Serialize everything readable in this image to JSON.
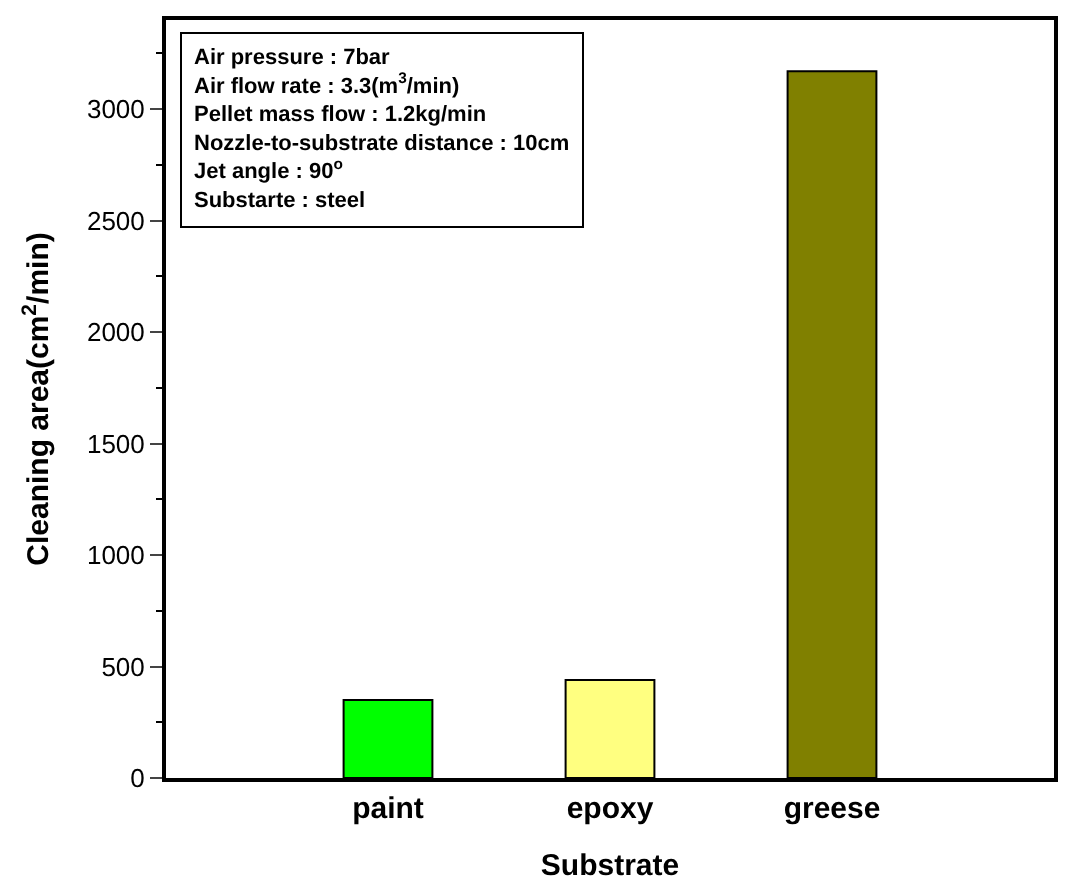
{
  "chart_data": {
    "type": "bar",
    "xlabel": "Substrate",
    "ylabel": "Cleaning area(cm$^{2}$/min)",
    "categories": [
      "paint",
      "epoxy",
      "greese"
    ],
    "values": [
      350,
      440,
      3170
    ],
    "colors": [
      "#00ff00",
      "#ffff80",
      "#808000"
    ],
    "ylim": [
      0,
      3400
    ],
    "yticks": [
      0,
      500,
      1000,
      1500,
      2000,
      2500,
      3000
    ],
    "annotations": [
      "Air pressure : 7bar",
      "Air flow rate : 3.3(m$^{3}$/min)",
      "Pellet mass flow : 1.2kg/min",
      "Nozzle-to-substrate distance : 10cm",
      "Jet angle : 90$^{o}$",
      "Substarte : steel"
    ]
  }
}
